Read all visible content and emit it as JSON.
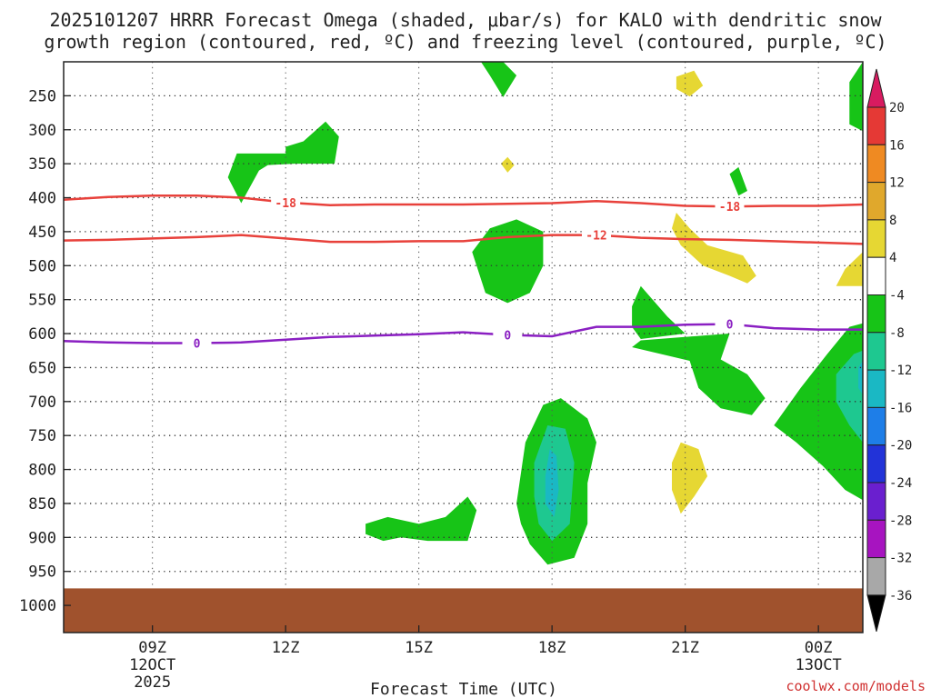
{
  "chart_data": {
    "type": "contour",
    "title_line1": "2025101207 HRRR Forecast Omega (shaded, μbar/s) for KALO with dendritic snow",
    "title_line2": "growth region (contoured, red, ºC) and freezing level (contoured, purple, ºC)",
    "xlabel": "Forecast Time (UTC)",
    "credit": "coolwx.com/models",
    "x_hours_range": [
      7,
      25
    ],
    "y_pressure_range": [
      200,
      1040
    ],
    "x_ticks": [
      {
        "hour": 9,
        "label": "09Z",
        "sub": "12OCT",
        "sub2": "2025"
      },
      {
        "hour": 12,
        "label": "12Z"
      },
      {
        "hour": 15,
        "label": "15Z"
      },
      {
        "hour": 18,
        "label": "18Z"
      },
      {
        "hour": 21,
        "label": "21Z"
      },
      {
        "hour": 24,
        "label": "00Z",
        "sub": "13OCT"
      }
    ],
    "y_ticks": [
      250,
      300,
      350,
      400,
      450,
      500,
      550,
      600,
      650,
      700,
      750,
      800,
      850,
      900,
      950,
      1000
    ],
    "ground_pressure": 975,
    "colorbar": {
      "labels": [
        "20",
        "16",
        "12",
        "8",
        "4",
        "-4",
        "-8",
        "-12",
        "-16",
        "-20",
        "-24",
        "-28",
        "-32",
        "-36"
      ],
      "colors": [
        "#d81b60",
        "#e53935",
        "#ef8a22",
        "#e0a82c",
        "#e6d733",
        "#ffffff",
        "#17c417",
        "#1ec890",
        "#1ab8c4",
        "#1e7ee8",
        "#2233d8",
        "#6a1fcf",
        "#a714c0",
        "#a8a8a8",
        "#000000"
      ]
    },
    "contour_lines": [
      {
        "name": "dendritic -18",
        "level": "-18",
        "color": "#e8413b",
        "points": [
          [
            7,
            403
          ],
          [
            8,
            399
          ],
          [
            9,
            397
          ],
          [
            10,
            397
          ],
          [
            11,
            400
          ],
          [
            12,
            407
          ],
          [
            13,
            411
          ],
          [
            14,
            410
          ],
          [
            15,
            410
          ],
          [
            16,
            410
          ],
          [
            17,
            409
          ],
          [
            18,
            408
          ],
          [
            19,
            405
          ],
          [
            20,
            408
          ],
          [
            21,
            412
          ],
          [
            22,
            413
          ],
          [
            23,
            412
          ],
          [
            24,
            412
          ],
          [
            25,
            410
          ]
        ],
        "label_hours": [
          12,
          22
        ]
      },
      {
        "name": "dendritic -12",
        "level": "-12",
        "color": "#e8413b",
        "points": [
          [
            7,
            463
          ],
          [
            8,
            462
          ],
          [
            9,
            460
          ],
          [
            10,
            458
          ],
          [
            11,
            455
          ],
          [
            12,
            460
          ],
          [
            13,
            465
          ],
          [
            14,
            465
          ],
          [
            15,
            464
          ],
          [
            16,
            464
          ],
          [
            17,
            458
          ],
          [
            18,
            455
          ],
          [
            19,
            455
          ],
          [
            20,
            459
          ],
          [
            21,
            461
          ],
          [
            22,
            462
          ],
          [
            23,
            464
          ],
          [
            24,
            466
          ],
          [
            25,
            468
          ]
        ],
        "label_hours": [
          19
        ]
      },
      {
        "name": "freezing level 0",
        "level": "0",
        "color": "#8a1fc2",
        "points": [
          [
            7,
            611
          ],
          [
            8,
            613
          ],
          [
            9,
            614
          ],
          [
            10,
            614
          ],
          [
            11,
            613
          ],
          [
            12,
            609
          ],
          [
            13,
            605
          ],
          [
            14,
            603
          ],
          [
            15,
            601
          ],
          [
            16,
            598
          ],
          [
            17,
            602
          ],
          [
            18,
            604
          ],
          [
            19,
            590
          ],
          [
            20,
            590
          ],
          [
            21,
            587
          ],
          [
            22,
            586
          ],
          [
            23,
            592
          ],
          [
            24,
            594
          ],
          [
            25,
            594
          ]
        ],
        "label_hours": [
          10,
          17,
          22
        ]
      }
    ],
    "omega_regions": [
      {
        "value": -6,
        "color": "#17c417",
        "points": [
          [
            16.4,
            200
          ],
          [
            16.9,
            200
          ],
          [
            17.2,
            220
          ],
          [
            16.9,
            252
          ],
          [
            16.6,
            220
          ]
        ]
      },
      {
        "value": 6,
        "color": "#e6d733",
        "points": [
          [
            20.8,
            222
          ],
          [
            21.2,
            213
          ],
          [
            21.4,
            235
          ],
          [
            21.1,
            251
          ],
          [
            20.8,
            240
          ]
        ]
      },
      {
        "value": -6,
        "color": "#17c417",
        "points": [
          [
            25,
            200
          ],
          [
            25,
            302
          ],
          [
            24.7,
            292
          ],
          [
            24.7,
            230
          ]
        ]
      },
      {
        "value": -6,
        "color": "#17c417",
        "points": [
          [
            10.9,
            335
          ],
          [
            12.0,
            335
          ],
          [
            12.0,
            325
          ],
          [
            12.4,
            317
          ],
          [
            12.9,
            288
          ],
          [
            13.2,
            310
          ],
          [
            13.1,
            350
          ],
          [
            12.2,
            350
          ],
          [
            11.6,
            352
          ],
          [
            11.4,
            360
          ],
          [
            11.0,
            408
          ],
          [
            10.7,
            370
          ]
        ]
      },
      {
        "value": 6,
        "color": "#e6d733",
        "points": [
          [
            16.85,
            350
          ],
          [
            17.0,
            340
          ],
          [
            17.15,
            352
          ],
          [
            17.0,
            363
          ]
        ]
      },
      {
        "value": -6,
        "color": "#17c417",
        "points": [
          [
            22.0,
            365
          ],
          [
            22.2,
            355
          ],
          [
            22.4,
            390
          ],
          [
            22.2,
            397
          ]
        ]
      },
      {
        "value": -6,
        "color": "#17c417",
        "points": [
          [
            16.2,
            480
          ],
          [
            16.6,
            445
          ],
          [
            17.2,
            432
          ],
          [
            17.8,
            450
          ],
          [
            17.8,
            500
          ],
          [
            17.5,
            540
          ],
          [
            17.0,
            555
          ],
          [
            16.5,
            540
          ]
        ]
      },
      {
        "value": 6,
        "color": "#e6d733",
        "points": [
          [
            20.7,
            445
          ],
          [
            20.8,
            422
          ],
          [
            21.1,
            445
          ],
          [
            21.5,
            470
          ],
          [
            22.3,
            485
          ],
          [
            22.6,
            515
          ],
          [
            22.4,
            526
          ],
          [
            22.0,
            515
          ],
          [
            21.4,
            500
          ],
          [
            20.9,
            470
          ]
        ]
      },
      {
        "value": 6,
        "color": "#e6d733",
        "points": [
          [
            24.4,
            530
          ],
          [
            24.6,
            505
          ],
          [
            25,
            480
          ],
          [
            25,
            530
          ]
        ]
      },
      {
        "value": -6,
        "color": "#17c417",
        "points": [
          [
            19.8,
            560
          ],
          [
            20.0,
            530
          ],
          [
            20.6,
            575
          ],
          [
            21.0,
            600
          ],
          [
            20.0,
            608
          ],
          [
            19.8,
            590
          ]
        ]
      },
      {
        "value": -6,
        "color": "#17c417",
        "points": [
          [
            22.0,
            600
          ],
          [
            20.0,
            610
          ],
          [
            19.8,
            620
          ],
          [
            21.1,
            640
          ],
          [
            21.3,
            680
          ],
          [
            21.8,
            710
          ],
          [
            22.5,
            720
          ],
          [
            22.8,
            695
          ],
          [
            22.4,
            660
          ],
          [
            21.8,
            638
          ]
        ]
      },
      {
        "value": -6,
        "color": "#17c417",
        "points": [
          [
            23.0,
            735
          ],
          [
            23.6,
            680
          ],
          [
            24.2,
            630
          ],
          [
            24.7,
            590
          ],
          [
            25,
            585
          ],
          [
            25,
            845
          ],
          [
            24.6,
            830
          ],
          [
            24.1,
            795
          ],
          [
            23.5,
            760
          ]
        ]
      },
      {
        "value": -10,
        "color": "#1ec890",
        "points": [
          [
            24.4,
            660
          ],
          [
            24.8,
            630
          ],
          [
            25,
            625
          ],
          [
            25,
            760
          ],
          [
            24.7,
            735
          ],
          [
            24.4,
            700
          ]
        ]
      },
      {
        "value": -14,
        "color": "#1ab8c4",
        "points": [
          [
            24.9,
            650
          ],
          [
            25,
            640
          ],
          [
            25,
            690
          ],
          [
            24.9,
            680
          ]
        ]
      },
      {
        "value": -6,
        "color": "#17c417",
        "points": [
          [
            17.2,
            850
          ],
          [
            17.4,
            760
          ],
          [
            17.8,
            705
          ],
          [
            18.2,
            695
          ],
          [
            18.8,
            725
          ],
          [
            19.0,
            760
          ],
          [
            18.8,
            820
          ],
          [
            18.8,
            880
          ],
          [
            18.5,
            930
          ],
          [
            17.9,
            940
          ],
          [
            17.5,
            910
          ],
          [
            17.3,
            880
          ]
        ]
      },
      {
        "value": -10,
        "color": "#1ec890",
        "points": [
          [
            17.6,
            790
          ],
          [
            17.9,
            735
          ],
          [
            18.3,
            740
          ],
          [
            18.5,
            790
          ],
          [
            18.4,
            880
          ],
          [
            18.0,
            905
          ],
          [
            17.7,
            880
          ],
          [
            17.6,
            840
          ]
        ]
      },
      {
        "value": -14,
        "color": "#1ab8c4",
        "points": [
          [
            17.85,
            810
          ],
          [
            17.95,
            770
          ],
          [
            18.1,
            780
          ],
          [
            18.15,
            830
          ],
          [
            18.05,
            870
          ],
          [
            17.85,
            850
          ]
        ]
      },
      {
        "value": 6,
        "color": "#e6d733",
        "points": [
          [
            20.7,
            790
          ],
          [
            20.9,
            760
          ],
          [
            21.3,
            770
          ],
          [
            21.5,
            810
          ],
          [
            21.2,
            840
          ],
          [
            20.9,
            865
          ],
          [
            20.7,
            830
          ]
        ]
      },
      {
        "value": -6,
        "color": "#17c417",
        "points": [
          [
            13.8,
            880
          ],
          [
            14.3,
            870
          ],
          [
            15.0,
            880
          ],
          [
            15.6,
            870
          ],
          [
            16.1,
            840
          ],
          [
            16.3,
            860
          ],
          [
            16.1,
            905
          ],
          [
            15.2,
            905
          ],
          [
            14.6,
            900
          ],
          [
            14.2,
            905
          ],
          [
            13.8,
            895
          ]
        ]
      }
    ]
  }
}
